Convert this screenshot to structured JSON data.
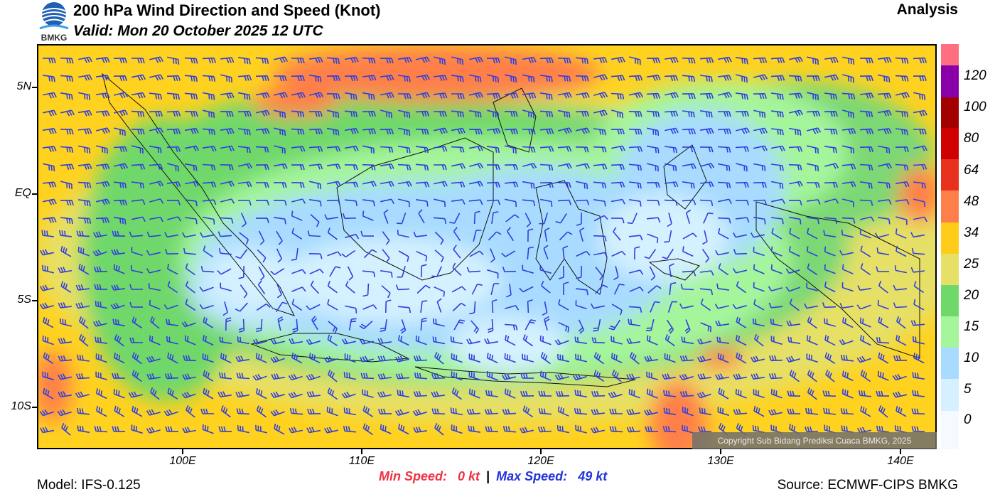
{
  "header": {
    "title": "200 hPa Wind Direction and Speed (Knot)",
    "valid": "Valid: Mon 20 October 2025 12 UTC",
    "analysis": "Analysis",
    "logo_text": "BMKG"
  },
  "map": {
    "lat_labels": [
      "5N",
      "EQ",
      "5S",
      "10S"
    ],
    "lon_labels": [
      "100E",
      "110E",
      "120E",
      "130E",
      "140E"
    ],
    "copyright": "Copyright Sub Bidang Prediksi Cuaca BMKG, 2025"
  },
  "colorbar": {
    "labels": [
      "120",
      "100",
      "80",
      "64",
      "48",
      "34",
      "25",
      "20",
      "15",
      "10",
      "5",
      "0"
    ],
    "colors": [
      "#ff6f7f",
      "#8a00a8",
      "#a30000",
      "#d10000",
      "#e8321e",
      "#ff7f4a",
      "#ffcc1a",
      "#e6e066",
      "#6fd86b",
      "#a5f59b",
      "#a8dbff",
      "#d5f1ff",
      "#f4faff"
    ]
  },
  "stats": {
    "min_label": "Min Speed:",
    "min_value": "0 kt",
    "separator": "|",
    "max_label": "Max Speed:",
    "max_value": "49 kt"
  },
  "footer": {
    "model": "Model: IFS-0.125",
    "source": "Source: ECMWF-CIPS BMKG"
  }
}
